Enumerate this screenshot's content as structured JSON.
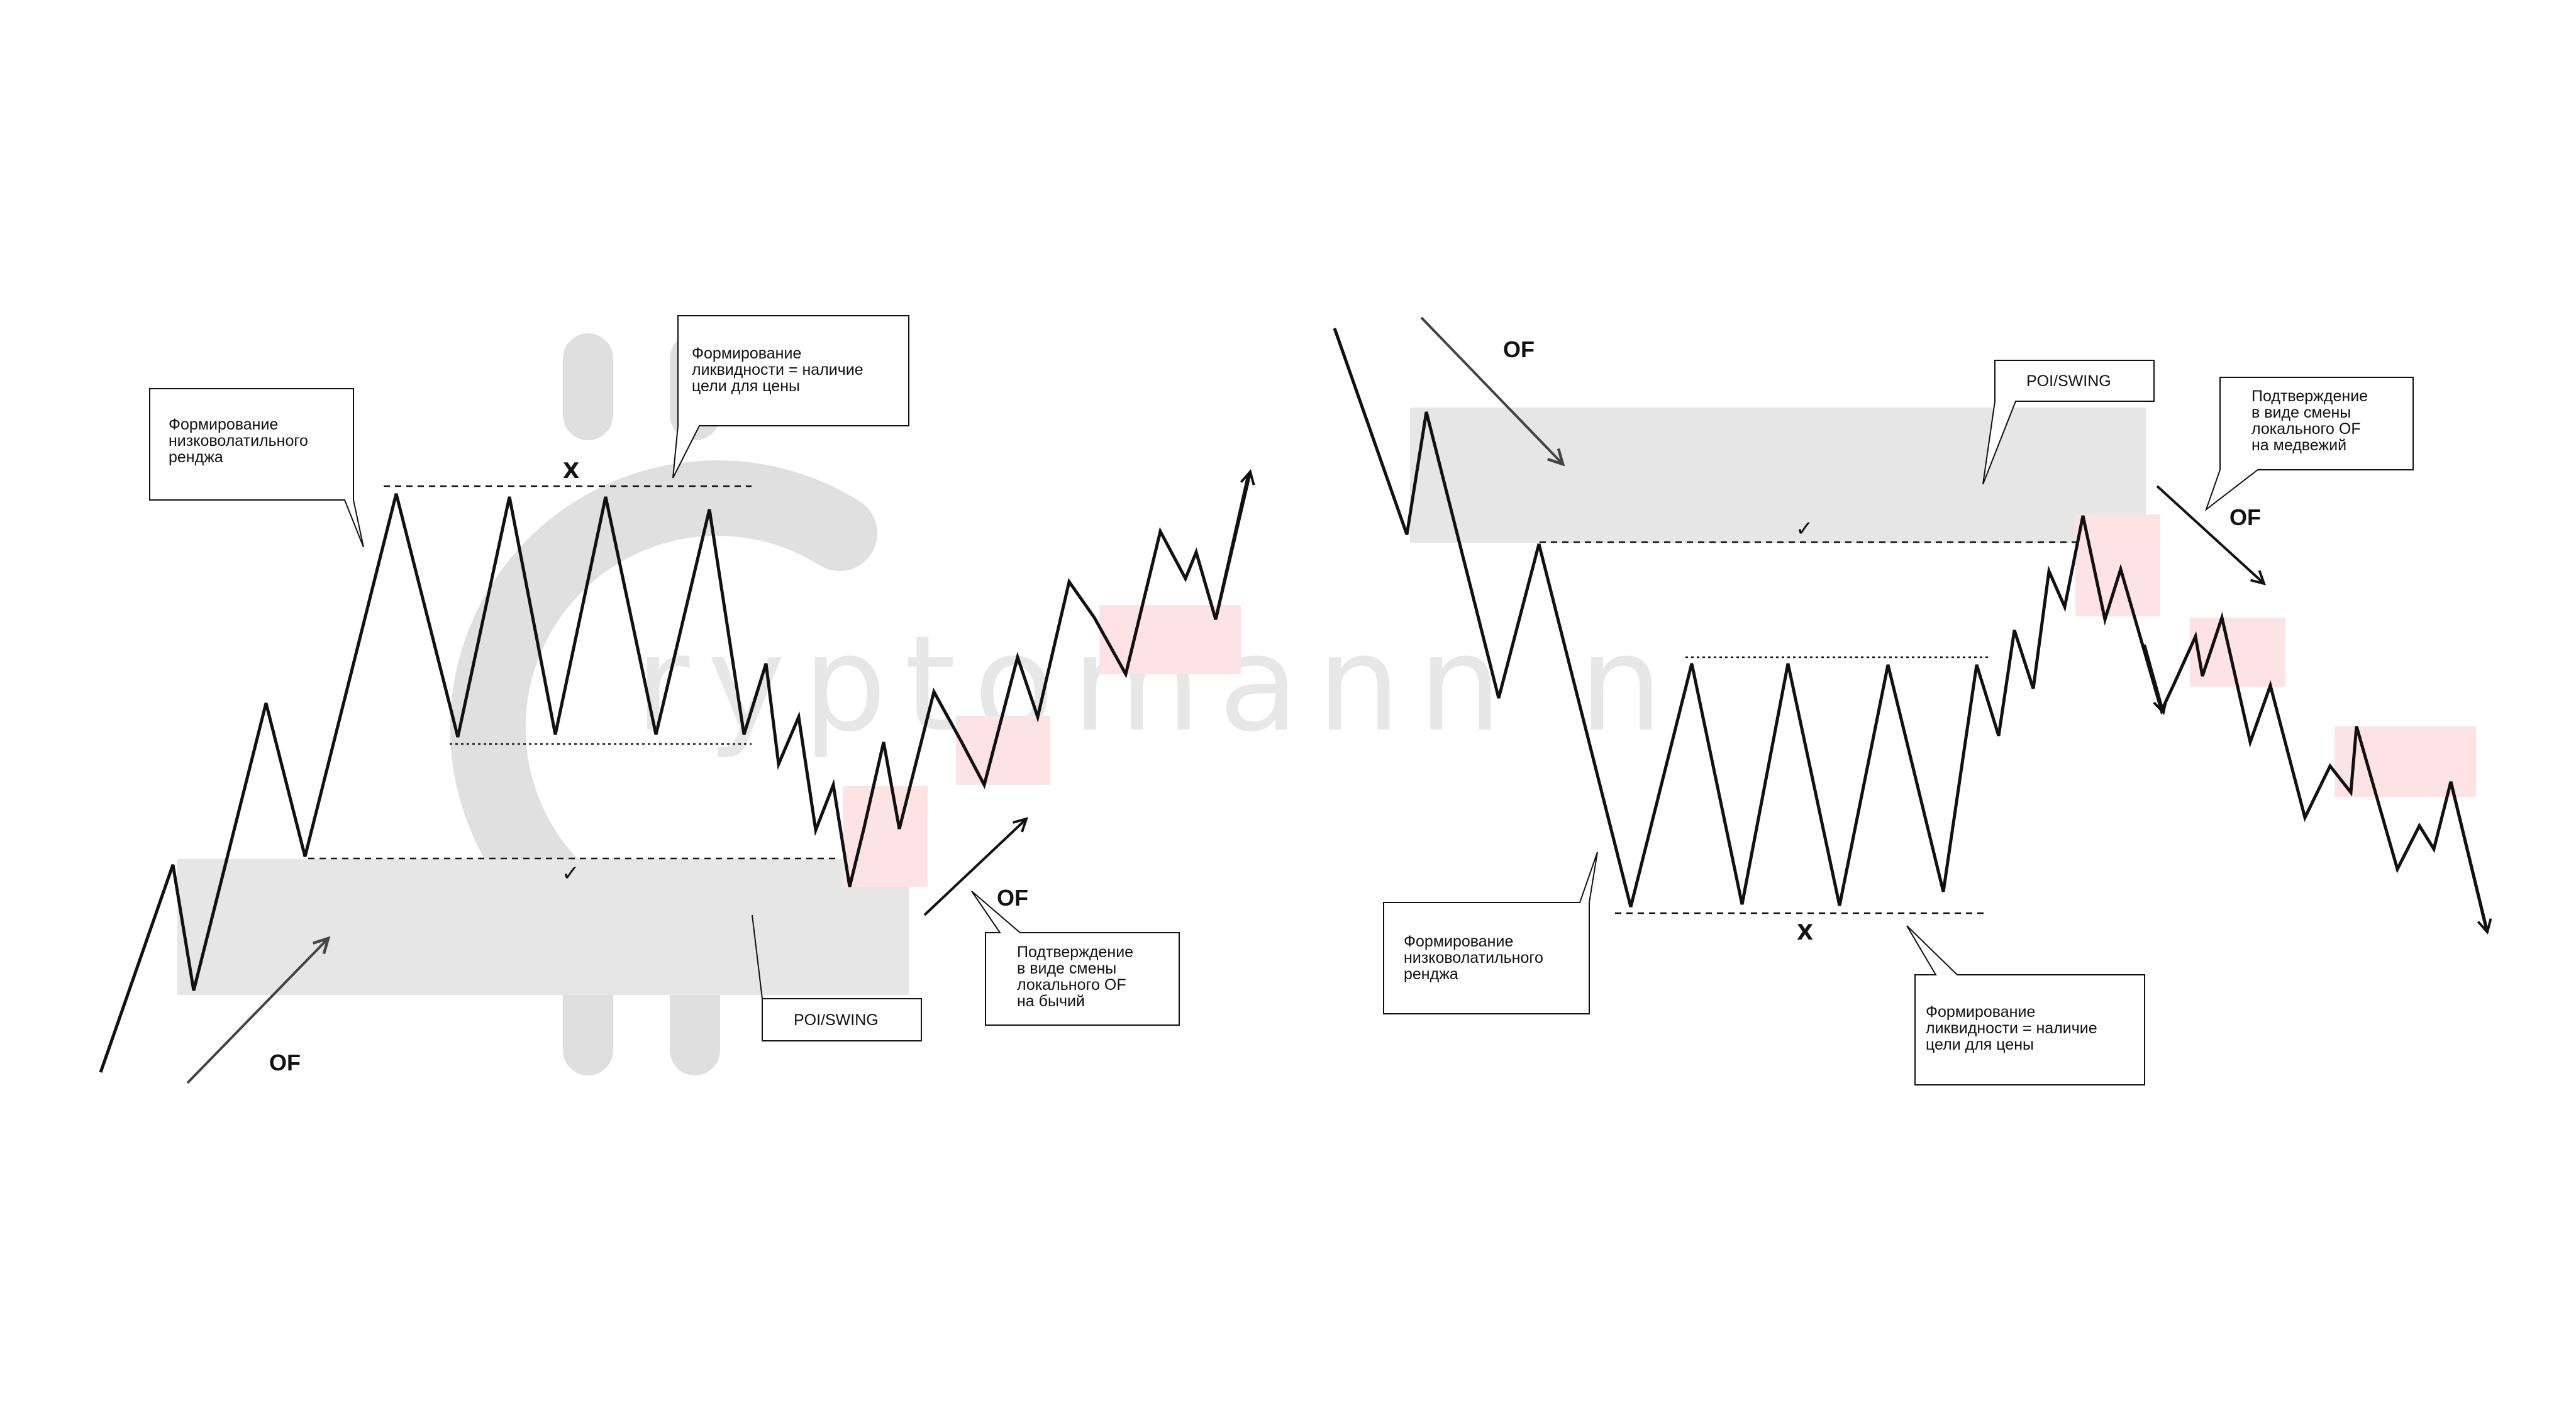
{
  "colors": {
    "background": "#ffffff",
    "price_line": "#111111",
    "poi_zone": "#e6e6e6",
    "confirm_zone": "#fde3e3",
    "watermark": "#d9d9d9"
  },
  "watermark": {
    "text": "ryptomann n",
    "icon": "crypto-coin-logo"
  },
  "bullish_scheme": {
    "order_flow_labels": [
      "OF",
      "OF"
    ],
    "liquidity_mark": "X",
    "mitigation_mark": "✓",
    "callout_range": [
      "Формирование",
      "низковолатильного",
      "ренджа"
    ],
    "callout_liquidity": [
      "Формирование",
      "ликвидности = наличие",
      "цели для цены"
    ],
    "callout_poi": "POI/SWING",
    "callout_confirmation": [
      "Подтверждение",
      "в виде смены",
      "локального OF",
      "на бычий"
    ]
  },
  "bearish_scheme": {
    "order_flow_labels": [
      "OF",
      "OF"
    ],
    "liquidity_mark": "X",
    "mitigation_mark": "✓",
    "callout_range": [
      "Формирование",
      "низковолатильного",
      "ренджа"
    ],
    "callout_liquidity": [
      "Формирование",
      "ликвидности = наличие",
      "цели для цены"
    ],
    "callout_poi": "POI/SWING",
    "callout_confirmation": [
      "Подтверждение",
      "в виде смены",
      "локального OF",
      "на медвежий"
    ]
  }
}
